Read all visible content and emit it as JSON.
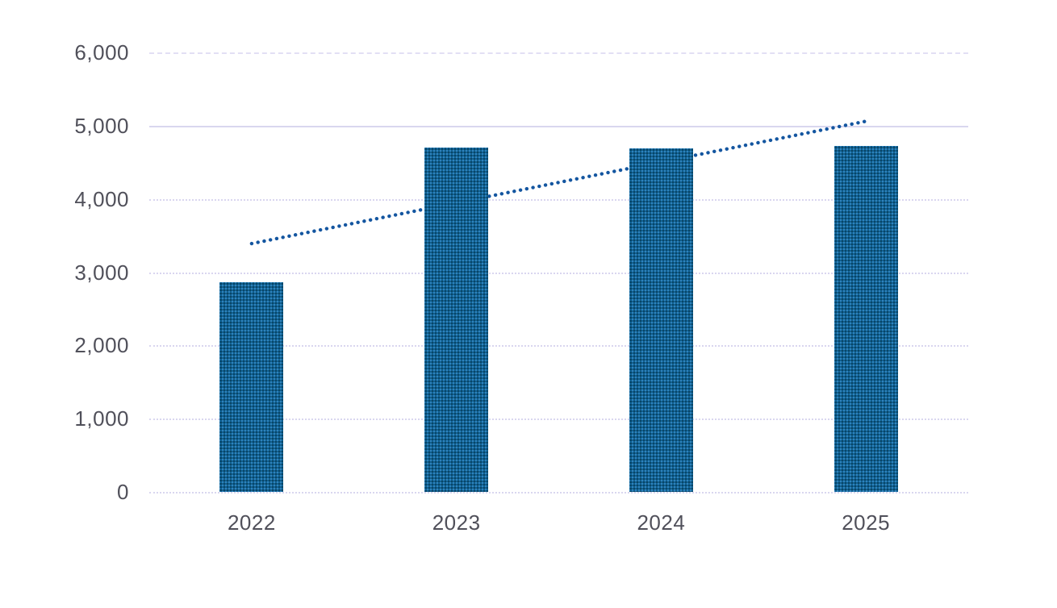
{
  "chart_data": {
    "type": "bar",
    "title": "",
    "xlabel": "",
    "ylabel": "",
    "categories": [
      "2022",
      "2023",
      "2024",
      "2025"
    ],
    "values": [
      2860,
      4700,
      4690,
      4720
    ],
    "trend_line": {
      "style": "dotted",
      "shape": "linear",
      "start_category": "2022",
      "start_value": 3390,
      "end_category": "2025",
      "end_value": 5060
    },
    "ylim": [
      0,
      6000
    ],
    "yticks": [
      {
        "value": 6000,
        "label": "6,000",
        "line_style": "dashed"
      },
      {
        "value": 5000,
        "label": "5,000",
        "line_style": "solid"
      },
      {
        "value": 4000,
        "label": "4,000",
        "line_style": "dotted"
      },
      {
        "value": 3000,
        "label": "3,000",
        "line_style": "dotted"
      },
      {
        "value": 2000,
        "label": "2,000",
        "line_style": "dotted"
      },
      {
        "value": 1000,
        "label": "1,000",
        "line_style": "dotted"
      },
      {
        "value": 0,
        "label": "0",
        "line_style": "dotted"
      }
    ],
    "grid": true,
    "legend": "none",
    "colors": {
      "bar_fill": "#0f6395",
      "bar_pattern_dot": "#05283c",
      "trend_dot": "#1456a0",
      "gridline": "#d9d6ef",
      "tick_label": "#50505a",
      "background": "#ffffff"
    }
  }
}
